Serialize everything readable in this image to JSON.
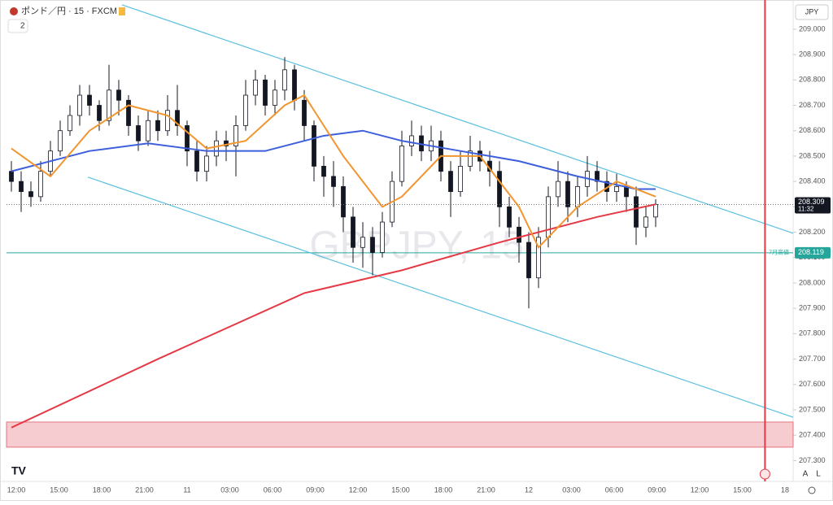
{
  "header": {
    "title": "ポンド／円 · 15 · FXCM",
    "indicators": "2",
    "currency": "JPY"
  },
  "chart_data": {
    "type": "candlestick",
    "watermark": "GBPJPY, 15",
    "open": [
      208.44,
      208.4,
      208.36,
      208.34,
      208.44,
      208.52,
      208.6,
      208.66,
      208.74,
      208.7,
      208.64,
      208.76,
      208.72,
      208.62,
      208.56,
      208.64,
      208.6,
      208.68,
      208.62,
      208.52,
      208.44,
      208.5,
      208.56,
      208.54,
      208.62,
      208.74,
      208.8,
      208.7,
      208.76,
      208.84,
      208.72,
      208.62,
      208.46,
      208.42,
      208.38,
      208.26,
      208.14,
      208.18,
      208.12,
      208.24,
      208.4,
      208.54,
      208.58,
      208.52,
      208.56,
      208.44,
      208.36,
      208.46,
      208.52,
      208.48,
      208.44,
      208.3,
      208.22,
      208.16,
      208.02,
      208.18,
      208.34,
      208.4,
      208.3,
      208.38,
      208.44,
      208.4,
      208.36,
      208.38,
      208.34,
      208.22,
      208.26
    ],
    "high": [
      208.48,
      208.44,
      208.4,
      208.48,
      208.56,
      208.64,
      208.7,
      208.78,
      208.78,
      208.72,
      208.86,
      208.8,
      208.74,
      208.66,
      208.68,
      208.68,
      208.74,
      208.78,
      208.64,
      208.56,
      208.54,
      208.6,
      208.6,
      208.66,
      208.8,
      208.84,
      208.82,
      208.8,
      208.89,
      208.86,
      208.76,
      208.64,
      208.5,
      208.48,
      208.42,
      208.3,
      208.24,
      208.22,
      208.28,
      208.44,
      208.6,
      208.64,
      208.62,
      208.62,
      208.6,
      208.48,
      208.52,
      208.58,
      208.56,
      208.52,
      208.48,
      208.34,
      208.26,
      208.2,
      208.22,
      208.38,
      208.48,
      208.44,
      208.42,
      208.5,
      208.48,
      208.44,
      208.43,
      208.4,
      208.38,
      208.3,
      208.33
    ],
    "low": [
      208.36,
      208.28,
      208.3,
      208.32,
      208.42,
      208.5,
      208.58,
      208.62,
      208.66,
      208.6,
      208.62,
      208.66,
      208.58,
      208.52,
      208.54,
      208.56,
      208.58,
      208.58,
      208.46,
      208.4,
      208.4,
      208.46,
      208.48,
      208.42,
      208.6,
      208.7,
      208.66,
      208.66,
      208.72,
      208.68,
      208.56,
      208.4,
      208.34,
      208.3,
      208.2,
      208.08,
      208.06,
      208.03,
      208.1,
      208.22,
      208.38,
      208.5,
      208.48,
      208.48,
      208.4,
      208.26,
      208.34,
      208.44,
      208.44,
      208.38,
      208.22,
      208.18,
      208.08,
      207.9,
      207.98,
      208.14,
      208.3,
      208.24,
      208.26,
      208.34,
      208.36,
      208.32,
      208.32,
      208.28,
      208.15,
      208.18,
      208.22
    ],
    "close": [
      208.4,
      208.36,
      208.34,
      208.44,
      208.52,
      208.6,
      208.66,
      208.74,
      208.7,
      208.64,
      208.76,
      208.72,
      208.62,
      208.56,
      208.64,
      208.6,
      208.68,
      208.62,
      208.52,
      208.44,
      208.5,
      208.56,
      208.54,
      208.62,
      208.74,
      208.8,
      208.7,
      208.76,
      208.84,
      208.72,
      208.62,
      208.46,
      208.42,
      208.38,
      208.26,
      208.14,
      208.18,
      208.12,
      208.24,
      208.4,
      208.54,
      208.58,
      208.52,
      208.56,
      208.44,
      208.36,
      208.46,
      208.52,
      208.48,
      208.44,
      208.3,
      208.22,
      208.16,
      208.02,
      208.18,
      208.34,
      208.4,
      208.3,
      208.38,
      208.44,
      208.4,
      208.36,
      208.38,
      208.34,
      208.22,
      208.26,
      208.309
    ],
    "up_color": "#ffffff",
    "down_color": "#131722",
    "x_labels": [
      "12:00",
      "15:00",
      "18:00",
      "21:00",
      "11",
      "03:00",
      "06:00",
      "09:00",
      "12:00",
      "15:00",
      "18:00",
      "21:00",
      "12",
      "03:00",
      "06:00",
      "09:00",
      "12:00",
      "15:00",
      "18"
    ],
    "ylim": [
      207.218,
      209.115
    ],
    "yticks": [
      {
        "value": 209.0,
        "label": "209.000"
      },
      {
        "value": 208.9,
        "label": "208.900"
      },
      {
        "value": 208.8,
        "label": "208.800"
      },
      {
        "value": 208.7,
        "label": "208.700"
      },
      {
        "value": 208.6,
        "label": "208.600"
      },
      {
        "value": 208.5,
        "label": "208.500"
      },
      {
        "value": 208.4,
        "label": "208.400"
      },
      {
        "value": 208.3,
        "label": "208.300"
      },
      {
        "value": 208.2,
        "label": "208.200"
      },
      {
        "value": 208.1,
        "label": "208.100"
      },
      {
        "value": 208.0,
        "label": "208.000"
      },
      {
        "value": 207.9,
        "label": "207.900"
      },
      {
        "value": 207.8,
        "label": "207.800"
      },
      {
        "value": 207.7,
        "label": "207.700"
      },
      {
        "value": 207.6,
        "label": "207.600"
      },
      {
        "value": 207.5,
        "label": "207.500"
      },
      {
        "value": 207.4,
        "label": "207.400"
      },
      {
        "value": 207.3,
        "label": "207.300"
      }
    ],
    "lines": [
      {
        "color": "#e53946",
        "x": [
          0,
          15,
          30,
          40,
          50,
          60,
          66
        ],
        "values": [
          207.43,
          207.7,
          207.96,
          208.05,
          208.16,
          208.26,
          208.31
        ]
      },
      {
        "color": "#3d5fdb",
        "x": [
          0,
          4,
          8,
          14,
          20,
          26,
          32,
          36,
          40,
          46,
          52,
          58,
          64,
          66
        ],
        "values": [
          208.44,
          208.48,
          208.52,
          208.55,
          208.52,
          208.52,
          208.58,
          208.6,
          208.56,
          208.52,
          208.48,
          208.42,
          208.37,
          208.37
        ]
      },
      {
        "color": "#f2952f",
        "x": [
          0,
          4,
          8,
          12,
          16,
          20,
          24,
          28,
          30,
          34,
          38,
          40,
          44,
          48,
          52,
          54,
          58,
          62,
          66
        ],
        "values": [
          208.53,
          208.42,
          208.6,
          208.7,
          208.66,
          208.53,
          208.56,
          208.7,
          208.74,
          208.5,
          208.3,
          208.34,
          208.5,
          208.5,
          208.3,
          208.14,
          208.3,
          208.4,
          208.34
        ]
      }
    ],
    "trendlines": [
      {
        "color": "#5bc0de",
        "x": [
          11.33,
          80.08
        ],
        "values": [
          209.096,
          208.196
        ]
      },
      {
        "color": "#5bc0de",
        "x": [
          7.83,
          80.08
        ],
        "values": [
          208.417,
          207.471
        ]
      }
    ],
    "hline": {
      "value": 208.119,
      "label": "208.119",
      "note": "7月高値",
      "color": "#26a69a"
    },
    "last_price": {
      "value": 208.309,
      "label": "208.309",
      "countdown": "11:32"
    },
    "zone": {
      "from": 207.353,
      "to": 207.452,
      "color": "#f6ccd0"
    },
    "vline_x": 77.2,
    "buttons": [
      "A",
      "L"
    ]
  }
}
